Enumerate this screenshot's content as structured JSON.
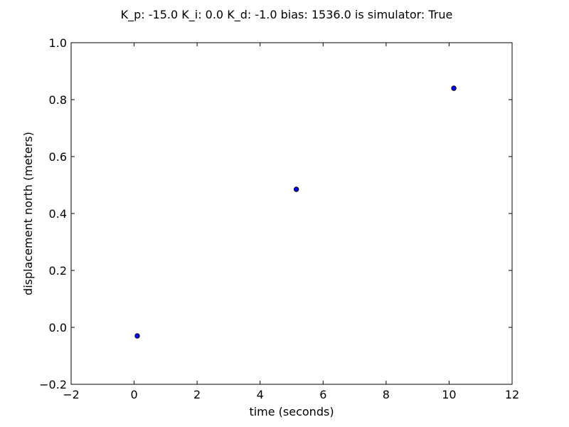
{
  "chart_data": {
    "type": "scatter",
    "title": "K_p: -15.0 K_i: 0.0 K_d: -1.0 bias: 1536.0 is simulator: True",
    "xlabel": "time (seconds)",
    "ylabel": "displacement north (meters)",
    "xlim": [
      -2,
      12
    ],
    "ylim": [
      -0.2,
      1.0
    ],
    "xticks": [
      -2,
      0,
      2,
      4,
      6,
      8,
      10,
      12
    ],
    "yticks": [
      -0.2,
      0.0,
      0.2,
      0.4,
      0.6,
      0.8,
      1.0
    ],
    "xtick_labels": [
      "−2",
      "0",
      "2",
      "4",
      "6",
      "8",
      "10",
      "12"
    ],
    "ytick_labels": [
      "−0.2",
      "0.0",
      "0.2",
      "0.4",
      "0.6",
      "0.8",
      "1.0"
    ],
    "x": [
      0.1,
      5.15,
      10.15
    ],
    "y": [
      -0.03,
      0.485,
      0.84
    ],
    "marker_color": "#0000ff",
    "marker_edge_color": "#000000",
    "grid": false
  }
}
